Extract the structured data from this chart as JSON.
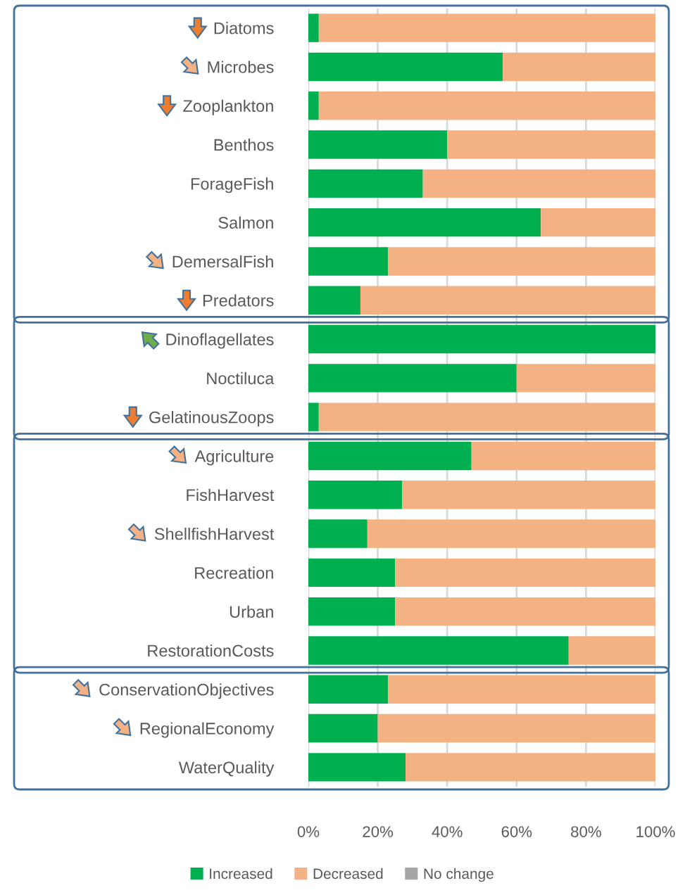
{
  "chart_data": {
    "type": "bar",
    "orientation": "horizontal",
    "stacked": true,
    "categories": [
      "Diatoms",
      "Microbes",
      "Zooplankton",
      "Benthos",
      "ForageFish",
      "Salmon",
      "DemersalFish",
      "Predators",
      "Dinoflagellates",
      "Noctiluca",
      "GelatinousZoops",
      "Agriculture",
      "FishHarvest",
      "ShellfishHarvest",
      "Recreation",
      "Urban",
      "RestorationCosts",
      "ConservationObjectives",
      "RegionalEconomy",
      "WaterQuality"
    ],
    "series": [
      {
        "name": "Increased",
        "color": "#00b050",
        "values": [
          3,
          56,
          3,
          40,
          33,
          67,
          23,
          15,
          100,
          60,
          3,
          47,
          27,
          17,
          25,
          25,
          75,
          23,
          20,
          28
        ]
      },
      {
        "name": "Decreased",
        "color": "#f4b183",
        "values": [
          97,
          44,
          97,
          60,
          67,
          33,
          77,
          85,
          0,
          40,
          97,
          53,
          73,
          83,
          75,
          75,
          25,
          77,
          80,
          72
        ]
      },
      {
        "name": "No change",
        "color": "#a5a5a5",
        "values": [
          0,
          0,
          0,
          0,
          0,
          0,
          0,
          0,
          0,
          0,
          0,
          0,
          0,
          0,
          0,
          0,
          0,
          0,
          0,
          0
        ]
      }
    ],
    "xlim": [
      0,
      100
    ],
    "xticks": [
      {
        "value": 0,
        "label": "0%"
      },
      {
        "value": 20,
        "label": "20%"
      },
      {
        "value": 40,
        "label": "40%"
      },
      {
        "value": 60,
        "label": "60%"
      },
      {
        "value": 80,
        "label": "80%"
      },
      {
        "value": 100,
        "label": "100%"
      }
    ],
    "grid": "x",
    "legend": "bottom"
  }
}
